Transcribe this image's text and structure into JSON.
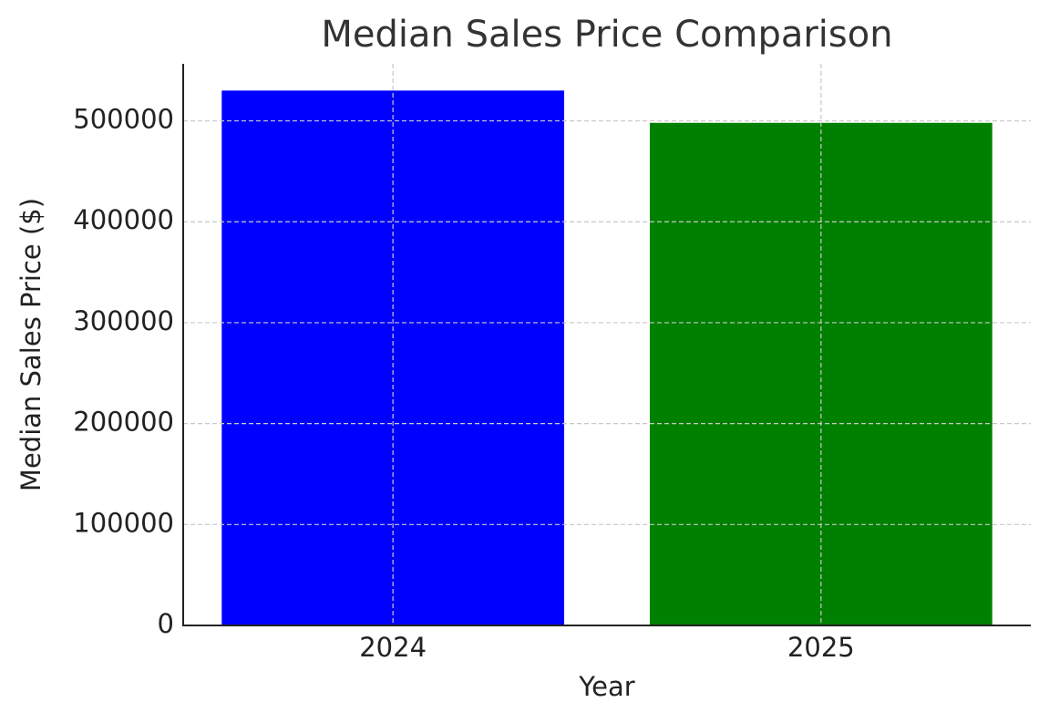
{
  "chart_data": {
    "type": "bar",
    "title": "Median Sales Price Comparison",
    "xlabel": "Year",
    "ylabel": "Median Sales Price ($)",
    "categories": [
      "2024",
      "2025"
    ],
    "values": [
      530000,
      498000
    ],
    "colors": [
      "#0000ff",
      "#008000"
    ],
    "ylim": [
      0,
      556500
    ],
    "yticks": [
      0,
      100000,
      200000,
      300000,
      400000,
      500000
    ],
    "grid": true
  }
}
